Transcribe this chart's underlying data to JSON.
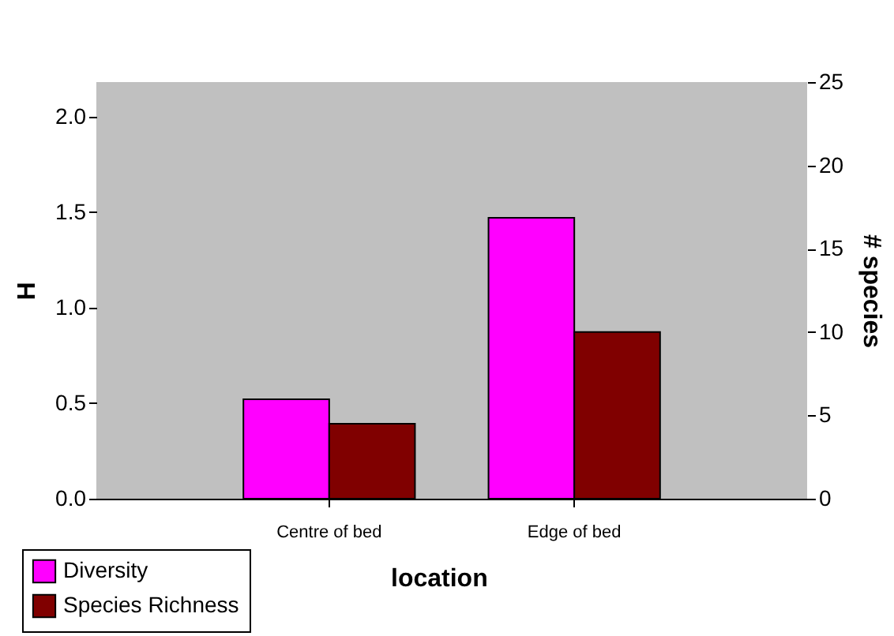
{
  "chart_data": {
    "type": "bar",
    "xlabel": "location",
    "ylabel": "H",
    "y2label": "# species",
    "categories": [
      "Centre of bed",
      "Edge of bed"
    ],
    "series": [
      {
        "name": "Diversity",
        "color": "#ff00ff",
        "values": [
          0.52,
          1.47
        ]
      },
      {
        "name": "Species Richness",
        "color": "#800000",
        "values": [
          4.5,
          10
        ],
        "axis": "y2"
      }
    ],
    "ylim": [
      0,
      2.18
    ],
    "yticks": [
      {
        "value": 0,
        "label": "0.0"
      },
      {
        "value": 0.5,
        "label": "0.5"
      },
      {
        "value": 1,
        "label": "1.0"
      },
      {
        "value": 1.5,
        "label": "1.5"
      },
      {
        "value": 2,
        "label": "2.0"
      }
    ],
    "y2lim": [
      0,
      25
    ],
    "y2ticks": [
      0,
      5,
      10,
      15,
      20,
      25
    ],
    "grid": false,
    "legend": "bottom left"
  }
}
